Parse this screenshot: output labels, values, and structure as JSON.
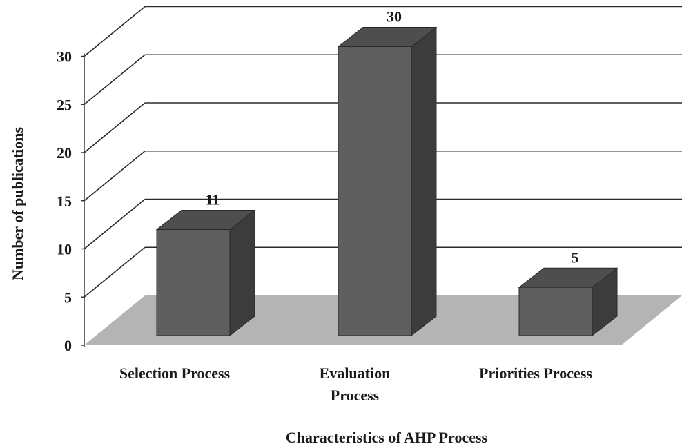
{
  "chart_data": {
    "type": "bar",
    "style": "3d-column",
    "title": "",
    "xlabel": "Characteristics of AHP Process",
    "ylabel": "Number of publications",
    "categories": [
      [
        "Selection Process"
      ],
      [
        "Evaluation",
        "Process"
      ],
      [
        "Priorities Process"
      ]
    ],
    "values": [
      11,
      30,
      5
    ],
    "data_labels": [
      "11",
      "30",
      "5"
    ],
    "ylim": [
      0,
      30
    ],
    "yticks": [
      0,
      5,
      10,
      15,
      20,
      25,
      30
    ],
    "grid": true,
    "legend": "none",
    "colors": {
      "bar_front": "#5f5f5f",
      "bar_top": "#4e4e4e",
      "bar_side": "#3c3c3c",
      "floor": "#b4b4b4",
      "grid": "#2a2a2a",
      "text": "#1a1a1a"
    }
  }
}
